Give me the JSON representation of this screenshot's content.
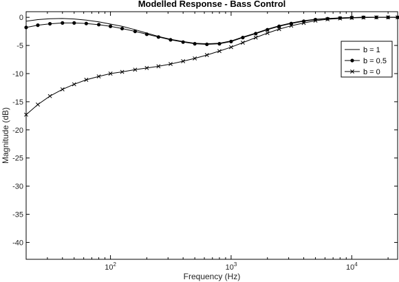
{
  "chart_data": {
    "type": "line",
    "title": "Modelled Response - Bass Control",
    "xlabel": "Frequency (Hz)",
    "ylabel": "Magnitude (dB)",
    "x_scale": "log",
    "xlim": [
      20,
      24000
    ],
    "ylim": [
      -43,
      1
    ],
    "x_ticks": [
      {
        "value": 100,
        "base": "10",
        "exp": "2"
      },
      {
        "value": 1000,
        "base": "10",
        "exp": "3"
      },
      {
        "value": 10000,
        "base": "10",
        "exp": "4"
      }
    ],
    "y_ticks": [
      0,
      -5,
      -10,
      -15,
      -20,
      -25,
      -30,
      -35,
      -40
    ],
    "grid": false,
    "legend_position": "top-right",
    "series": [
      {
        "name": "b = 1",
        "marker": "none",
        "x": [
          20,
          25,
          31.5,
          40,
          50,
          63,
          80,
          100,
          125,
          160,
          200,
          250,
          315,
          400,
          500,
          630,
          800,
          1000,
          1250,
          1600,
          2000,
          2500,
          3150,
          4000,
          5000,
          6300,
          8000,
          10000,
          12500,
          16000,
          20000,
          24000
        ],
        "y": [
          -0.7,
          -0.4,
          -0.25,
          -0.2,
          -0.3,
          -0.5,
          -0.8,
          -1.2,
          -1.6,
          -2.2,
          -2.8,
          -3.4,
          -3.9,
          -4.3,
          -4.6,
          -4.7,
          -4.6,
          -4.2,
          -3.5,
          -2.8,
          -2.1,
          -1.5,
          -1.0,
          -0.6,
          -0.35,
          -0.2,
          -0.1,
          -0.05,
          0,
          0,
          0,
          0
        ]
      },
      {
        "name": "b = 0.5",
        "marker": "circle",
        "x": [
          20,
          25,
          31.5,
          40,
          50,
          63,
          80,
          100,
          125,
          160,
          200,
          250,
          315,
          400,
          500,
          630,
          800,
          1000,
          1250,
          1600,
          2000,
          2500,
          3150,
          4000,
          5000,
          6300,
          8000,
          10000,
          12500,
          16000,
          20000,
          24000
        ],
        "y": [
          -1.8,
          -1.4,
          -1.15,
          -1.0,
          -1.0,
          -1.1,
          -1.3,
          -1.6,
          -2.0,
          -2.5,
          -3.0,
          -3.5,
          -4.0,
          -4.4,
          -4.7,
          -4.8,
          -4.7,
          -4.3,
          -3.6,
          -2.9,
          -2.2,
          -1.6,
          -1.1,
          -0.7,
          -0.4,
          -0.25,
          -0.12,
          -0.05,
          0,
          0,
          0,
          0
        ]
      },
      {
        "name": "b = 0",
        "marker": "x",
        "x": [
          20,
          25,
          31.5,
          40,
          50,
          63,
          80,
          100,
          125,
          160,
          200,
          250,
          315,
          400,
          500,
          630,
          800,
          1000,
          1250,
          1600,
          2000,
          2500,
          3150,
          4000,
          5000,
          6300,
          8000,
          10000,
          12500,
          16000,
          20000,
          24000
        ],
        "y": [
          -17.3,
          -15.5,
          -14.0,
          -12.8,
          -11.9,
          -11.1,
          -10.5,
          -10.0,
          -9.7,
          -9.3,
          -9.0,
          -8.7,
          -8.3,
          -7.8,
          -7.3,
          -6.7,
          -6.0,
          -5.3,
          -4.5,
          -3.6,
          -2.8,
          -2.1,
          -1.5,
          -1.0,
          -0.6,
          -0.35,
          -0.2,
          -0.1,
          -0.05,
          0,
          0,
          0
        ]
      }
    ]
  }
}
